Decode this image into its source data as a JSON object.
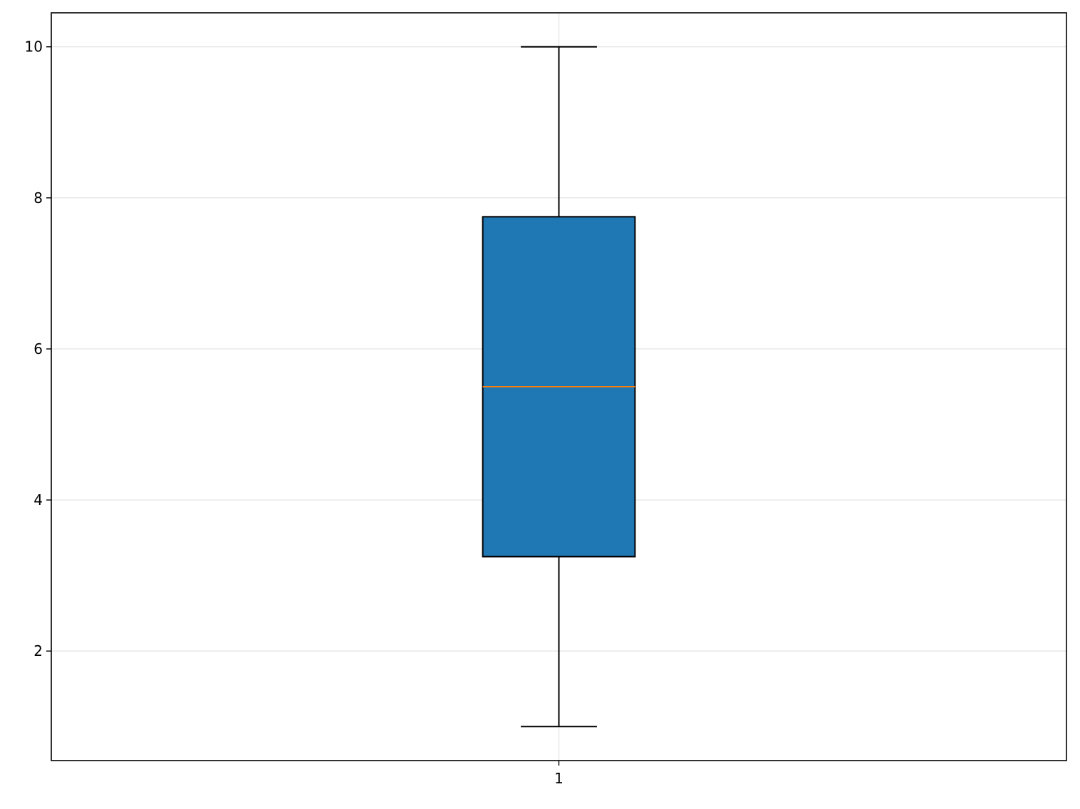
{
  "chart_data": {
    "type": "box",
    "title": "",
    "xlabel": "",
    "ylabel": "",
    "categories": [
      "1"
    ],
    "series": [
      {
        "whisker_low": 1,
        "q1": 3.25,
        "median": 5.5,
        "q3": 7.75,
        "whisker_high": 10
      }
    ],
    "xlim": [
      0.5,
      1.5
    ],
    "ylim": [
      0.55,
      10.45
    ],
    "yticks": [
      2,
      4,
      6,
      8,
      10
    ],
    "ytick_labels": [
      "2",
      "4",
      "6",
      "8",
      "10"
    ],
    "xtick_labels": [
      "1"
    ],
    "grid": true,
    "colors": {
      "box": "#1f77b4",
      "median": "#ff7f0e",
      "grid": "#e6e6e6"
    }
  }
}
